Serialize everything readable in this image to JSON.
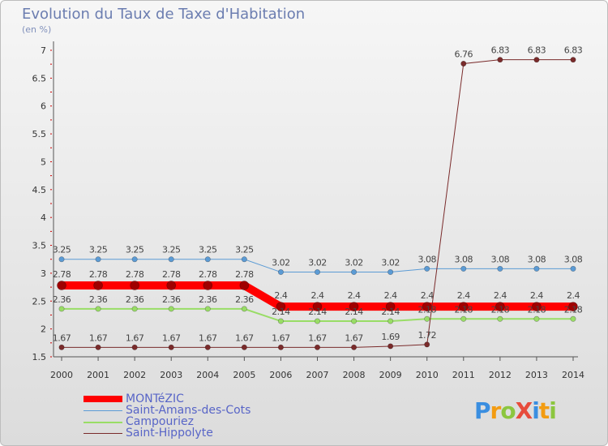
{
  "chart_data": {
    "type": "line",
    "title": "Evolution du Taux de Taxe d'Habitation",
    "subtitle": "(en %)",
    "x": [
      "2000",
      "2001",
      "2002",
      "2003",
      "2004",
      "2005",
      "2006",
      "2007",
      "2008",
      "2009",
      "2010",
      "2011",
      "2012",
      "2013",
      "2014"
    ],
    "ylim": [
      1.5,
      7
    ],
    "yticks": [
      "1.5",
      "2",
      "2.5",
      "3",
      "3.5",
      "4",
      "4.5",
      "5",
      "5.5",
      "6",
      "6.5",
      "7"
    ],
    "grid": "none",
    "legend_position": "bottom-left",
    "series": [
      {
        "name": "MONTéZIC",
        "color": "#ff0000",
        "width": 10,
        "values": [
          2.78,
          2.78,
          2.78,
          2.78,
          2.78,
          2.78,
          2.4,
          2.4,
          2.4,
          2.4,
          2.4,
          2.4,
          2.4,
          2.4,
          2.4
        ],
        "labels": [
          "2.78",
          "2.78",
          "2.78",
          "2.78",
          "2.78",
          "2.78",
          "2.4",
          "2.4",
          "2.4",
          "2.4",
          "2.4",
          "2.4",
          "2.4",
          "2.4",
          "2.4"
        ]
      },
      {
        "name": "Saint-Amans-des-Cots",
        "color": "#5b9bd5",
        "width": 1,
        "values": [
          3.25,
          3.25,
          3.25,
          3.25,
          3.25,
          3.25,
          3.02,
          3.02,
          3.02,
          3.02,
          3.08,
          3.08,
          3.08,
          3.08,
          3.08
        ],
        "labels": [
          "3.25",
          "3.25",
          "3.25",
          "3.25",
          "3.25",
          "3.25",
          "3.02",
          "3.02",
          "3.02",
          "3.02",
          "3.08",
          "3.08",
          "3.08",
          "3.08",
          "3.08"
        ]
      },
      {
        "name": "Campouriez",
        "color": "#99dd66",
        "width": 2,
        "values": [
          2.36,
          2.36,
          2.36,
          2.36,
          2.36,
          2.36,
          2.14,
          2.14,
          2.14,
          2.14,
          2.18,
          2.18,
          2.18,
          2.18,
          2.18
        ],
        "labels": [
          "2.36",
          "2.36",
          "2.36",
          "2.36",
          "2.36",
          "2.36",
          "2.14",
          "2.14",
          "2.14",
          "2.14",
          "2.18",
          "2.18",
          "2.18",
          "2.18",
          "2.18"
        ]
      },
      {
        "name": "Saint-Hippolyte",
        "color": "#7a2b2b",
        "width": 1,
        "values": [
          1.67,
          1.67,
          1.67,
          1.67,
          1.67,
          1.67,
          1.67,
          1.67,
          1.67,
          1.69,
          1.72,
          6.76,
          6.83,
          6.83,
          6.83
        ],
        "labels": [
          "1.67",
          "1.67",
          "1.67",
          "1.67",
          "1.67",
          "1.67",
          "1.67",
          "1.67",
          "1.67",
          "1.69",
          "1.72",
          "6.76",
          "6.83",
          "6.83",
          "6.83"
        ]
      }
    ]
  },
  "logo": {
    "text": "ProXiti"
  }
}
